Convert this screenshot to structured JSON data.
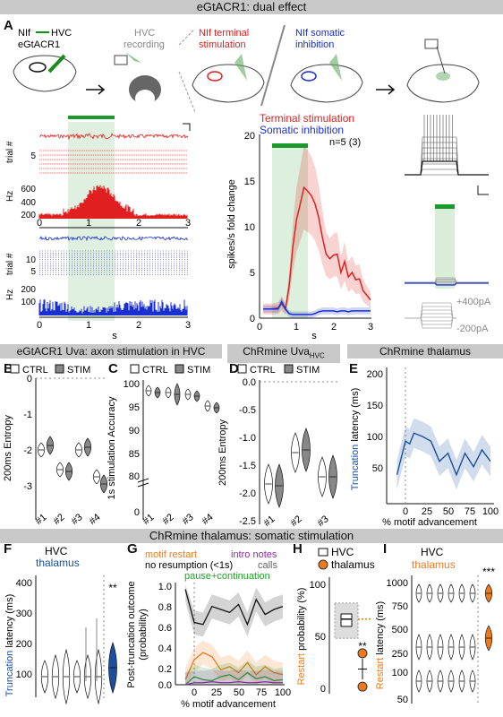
{
  "banner_top": "eGtACR1: dual effect",
  "banner_mid": "ChRmine thalamus: somatic stimulation",
  "sections": {
    "b": "eGtACR1 Uva: axon stimulation in HVC",
    "d_prefix": "ChRmine Uva",
    "d_sub": "HVC",
    "e": "ChRmine thalamus"
  },
  "panel_letters": [
    "A",
    "B",
    "C",
    "D",
    "E",
    "F",
    "G",
    "H",
    "I"
  ],
  "panelA": {
    "schematic": {
      "nif_hvc_a": "NIf",
      "nif_hvc_b": "HVC",
      "construct": "eGtACR1",
      "hvc_rec_1": "HVC",
      "hvc_rec_2": "recording",
      "nif_term_1": "NIf terminal",
      "nif_term_2": "stimulation",
      "nif_soma_1": "NIf somatic",
      "nif_soma_2": "inhibition"
    },
    "trial_label": "trial #",
    "hz_label": "Hz",
    "s_label": "s",
    "red_trial_ticks": [
      "5"
    ],
    "red_hz_ticks": [
      "600",
      "400",
      "200"
    ],
    "blue_trial_ticks": [
      "10",
      "5"
    ],
    "blue_hz_ticks": [
      "200",
      "100"
    ],
    "x_ticks": [
      "0",
      "1",
      "2",
      "3"
    ]
  },
  "panelA_plot": {
    "legend_red": "Terminal stimulation",
    "legend_blue": "Somatic inhibition",
    "n_label": "n=5 (3)",
    "ylabel": "spikes/s fold change",
    "xlabel": "s",
    "y_ticks": [
      "0",
      "5",
      "10",
      "15",
      "20"
    ],
    "x_ticks": [
      "0",
      "1",
      "2",
      "3"
    ]
  },
  "panelA_ephys": {
    "step_pos": "+400pA",
    "step_neg": "-200pA"
  },
  "legend_ctrl": "CTRL",
  "legend_stim": "STIM",
  "groups_4": [
    "#1",
    "#2",
    "#3",
    "#4"
  ],
  "groups_3": [
    "#1",
    "#2",
    "#3"
  ],
  "panelB": {
    "ylabel": "200ms Entropy",
    "y_ticks": [
      "0",
      "-1",
      "-2",
      "-3"
    ]
  },
  "panelC": {
    "ylabel": "1s stimulation Accuracy",
    "y_ticks": [
      "100",
      "95",
      "90",
      "85",
      "80",
      "0"
    ]
  },
  "panelD": {
    "ylabel": "200ms Entropy",
    "y_ticks": [
      "0.0",
      "-0.5",
      "-1.0",
      "-1.5",
      "-2.0",
      "-2.5"
    ]
  },
  "panelE": {
    "ylabel_a": "Truncation",
    "ylabel_b": " latency (ms)",
    "xlabel": "% motif advancement",
    "y_ticks": [
      "200",
      "150",
      "100",
      "50"
    ],
    "x_ticks": [
      "0",
      "25",
      "50",
      "75",
      "100"
    ]
  },
  "panelF": {
    "title_hvc": "HVC",
    "title_thal": "thalamus",
    "ylabel_a": "Truncation",
    "ylabel_b": " latency (ms)",
    "y_ticks": [
      "400",
      "300",
      "200",
      "100"
    ],
    "sig": "**"
  },
  "panelG": {
    "leg_restart": "motif restart",
    "leg_intro": "intro notes",
    "leg_noresume": "no resumption (<1s)",
    "leg_calls": "calls",
    "leg_pause": "pause+continuation",
    "ylabel_1": "Post-truncation outcome",
    "ylabel_2": "(probability)",
    "xlabel": "% motif advancement",
    "y_ticks": [
      "1.0",
      "0.8",
      "0.6",
      "0.4",
      "0.2",
      "0.0"
    ],
    "x_ticks": [
      "0",
      "25",
      "50",
      "75",
      "100"
    ]
  },
  "panelH": {
    "leg_hvc": "HVC",
    "leg_thal": "thalamus",
    "ylabel_a": "Restart",
    "ylabel_b": " probability (%)",
    "y_ticks": [
      "100",
      "50",
      "0"
    ],
    "sig": "**"
  },
  "panelI": {
    "title_hvc": "HVC",
    "title_thal": "thalamus",
    "ylabel_a": "Restart",
    "ylabel_b": " latency (ms)",
    "y_ticks": [
      "1000",
      "750",
      "500",
      "250",
      "100",
      "50"
    ],
    "sig": "***"
  },
  "chart_data": [
    {
      "type": "line",
      "panel": "A",
      "xlabel": "s",
      "ylabel": "spikes/s fold change",
      "xlim": [
        0,
        3
      ],
      "ylim": [
        0,
        20
      ],
      "stim_window": [
        0.5,
        1.5
      ],
      "x": [
        0.1,
        0.3,
        0.5,
        0.6,
        0.7,
        0.8,
        0.9,
        1.0,
        1.1,
        1.2,
        1.3,
        1.4,
        1.5,
        1.6,
        1.7,
        1.8,
        1.9,
        2.0,
        2.1,
        2.2,
        2.3,
        2.4,
        2.5,
        2.6,
        2.7,
        2.8,
        2.9,
        3.0
      ],
      "series": [
        {
          "name": "Terminal stimulation",
          "color": "#e02020",
          "values": [
            1.0,
            1.0,
            1.1,
            1.6,
            1.0,
            3.5,
            7.8,
            10.8,
            12.5,
            14.3,
            13.9,
            13.4,
            12.5,
            11.0,
            8.8,
            7.0,
            6.5,
            6.9,
            7.0,
            5.0,
            6.2,
            4.5,
            5.0,
            4.2,
            4.3,
            3.0,
            2.5,
            2.0
          ]
        },
        {
          "name": "Somatic inhibition",
          "color": "#1a2fd0",
          "values": [
            1.0,
            1.0,
            1.0,
            1.8,
            1.0,
            0.5,
            0.4,
            0.4,
            0.4,
            0.4,
            0.4,
            0.4,
            0.5,
            0.7,
            0.8,
            0.8,
            0.8,
            0.8,
            0.7,
            0.8,
            0.8,
            0.7,
            0.8,
            0.8,
            0.8,
            0.8,
            0.8,
            0.8
          ]
        }
      ]
    },
    {
      "type": "line",
      "panel": "E",
      "xlabel": "% motif advancement",
      "ylabel": "Truncation latency (ms)",
      "ylim": [
        25,
        225
      ],
      "xlim": [
        -15,
        100
      ],
      "x": [
        -10,
        -5,
        0,
        5,
        10,
        20,
        30,
        40,
        50,
        60,
        70,
        80,
        90,
        100
      ],
      "values": [
        68,
        93,
        118,
        114,
        130,
        125,
        118,
        88,
        100,
        68,
        100,
        80,
        105,
        88
      ]
    },
    {
      "type": "line",
      "panel": "G",
      "xlabel": "% motif advancement",
      "ylabel": "Post-truncation outcome (probability)",
      "ylim": [
        0,
        1.0
      ],
      "xlim": [
        -15,
        100
      ],
      "x": [
        -10,
        0,
        10,
        20,
        30,
        40,
        50,
        60,
        70,
        80,
        90,
        100
      ],
      "series": [
        {
          "name": "no resumption (<1s)",
          "color": "#111111",
          "values": [
            0.95,
            0.62,
            0.6,
            0.78,
            0.75,
            0.72,
            0.8,
            0.6,
            0.85,
            0.7,
            0.75,
            0.78
          ]
        },
        {
          "name": "motif restart",
          "color": "#f07a1a",
          "values": [
            0.05,
            0.25,
            0.32,
            0.28,
            0.15,
            0.18,
            0.12,
            0.22,
            0.1,
            0.18,
            0.12,
            0.1
          ]
        },
        {
          "name": "pause+continuation",
          "color": "#22a02a",
          "values": [
            0.0,
            0.08,
            0.05,
            0.04,
            0.08,
            0.1,
            0.05,
            0.12,
            0.06,
            0.08,
            0.04,
            0.05
          ]
        },
        {
          "name": "intro notes",
          "color": "#8a2aa0",
          "values": [
            0.0,
            0.02,
            0.02,
            0.03,
            0.02,
            0.02,
            0.03,
            0.02,
            0.02,
            0.03,
            0.02,
            0.02
          ]
        }
      ]
    },
    {
      "type": "box",
      "panel": "H",
      "ylabel": "Restart probability (%)",
      "ylim": [
        0,
        100
      ],
      "series": [
        {
          "name": "HVC",
          "median": 70,
          "q1": 63,
          "q3": 75,
          "min": 55,
          "max": 82
        },
        {
          "name": "thalamus",
          "mean": 22,
          "low": 12,
          "high": 32
        }
      ]
    }
  ]
}
